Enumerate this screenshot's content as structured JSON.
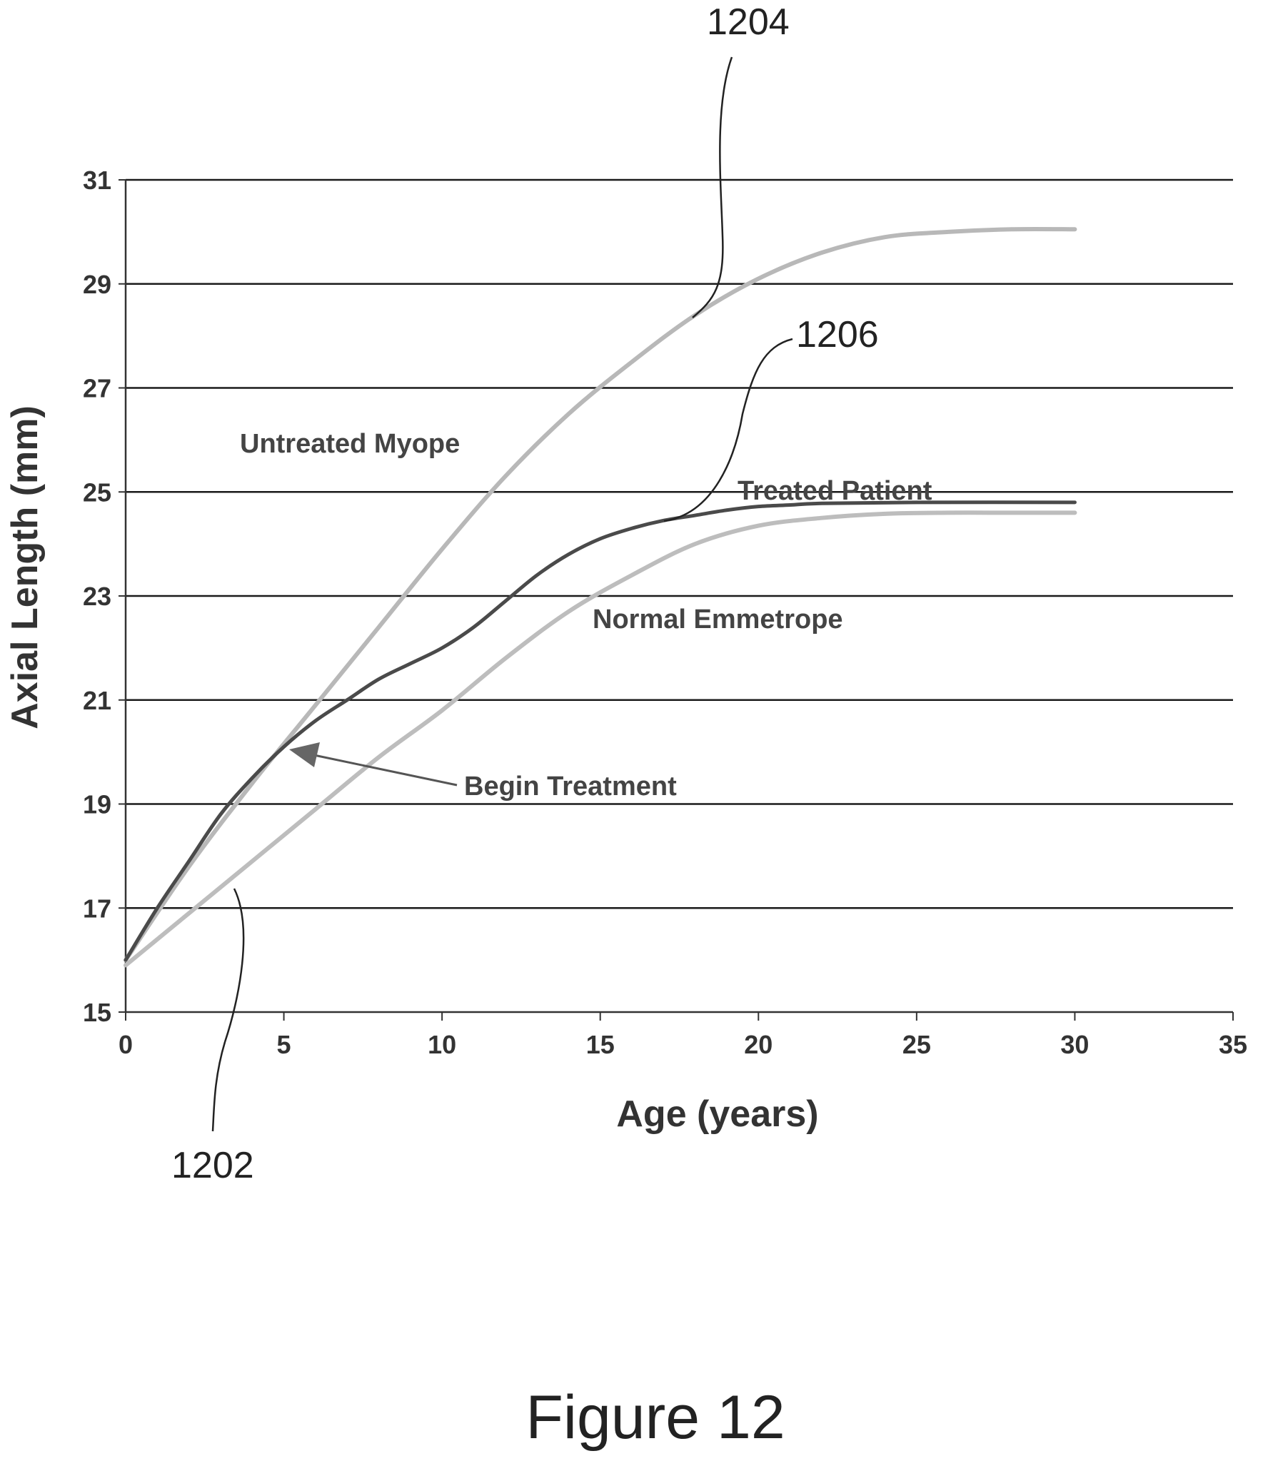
{
  "figure": {
    "caption": "Figure 12"
  },
  "chart_data": {
    "type": "line",
    "title": "",
    "xlabel": "Age (years)",
    "ylabel": "Axial Length (mm)",
    "xlim": [
      0,
      35
    ],
    "ylim": [
      15,
      31
    ],
    "x_ticks": [
      "0",
      "5",
      "10",
      "15",
      "20",
      "25",
      "30",
      "35"
    ],
    "y_ticks": [
      "15",
      "17",
      "19",
      "21",
      "23",
      "25",
      "27",
      "29",
      "31"
    ],
    "grid": "horizontal",
    "series": [
      {
        "name": "Untreated Myope",
        "ref": "1204",
        "color": "#b8b8b8",
        "x": [
          0,
          2,
          4,
          6,
          8,
          10,
          12,
          14,
          16,
          18,
          20,
          22,
          24,
          26,
          28,
          30
        ],
        "y": [
          16.0,
          17.8,
          19.4,
          20.9,
          22.4,
          23.9,
          25.3,
          26.5,
          27.5,
          28.4,
          29.1,
          29.6,
          29.9,
          30.0,
          30.05,
          30.05
        ]
      },
      {
        "name": "Treated Patient",
        "ref": "1206",
        "color": "#4a4a4a",
        "x": [
          0,
          1,
          2,
          3,
          4,
          5,
          6,
          7,
          8,
          9,
          10,
          11,
          12,
          13,
          14,
          15,
          16,
          17,
          18,
          19,
          20,
          21,
          22,
          25,
          30
        ],
        "y": [
          16.0,
          17.0,
          17.9,
          18.8,
          19.5,
          20.1,
          20.6,
          21.0,
          21.4,
          21.7,
          22.0,
          22.4,
          22.9,
          23.4,
          23.8,
          24.1,
          24.3,
          24.45,
          24.55,
          24.65,
          24.72,
          24.75,
          24.78,
          24.8,
          24.8
        ]
      },
      {
        "name": "Normal Emmetrope",
        "ref": "1202",
        "color": "#bdbdbd",
        "x": [
          0,
          2,
          4,
          6,
          8,
          10,
          12,
          14,
          16,
          18,
          20,
          22,
          24,
          26,
          28,
          30
        ],
        "y": [
          15.9,
          16.9,
          17.9,
          18.9,
          19.9,
          20.8,
          21.8,
          22.7,
          23.4,
          24.0,
          24.35,
          24.5,
          24.58,
          24.6,
          24.6,
          24.6
        ]
      }
    ],
    "annotations": [
      {
        "text": "Begin Treatment",
        "x": 5,
        "y": 20.1
      }
    ]
  }
}
